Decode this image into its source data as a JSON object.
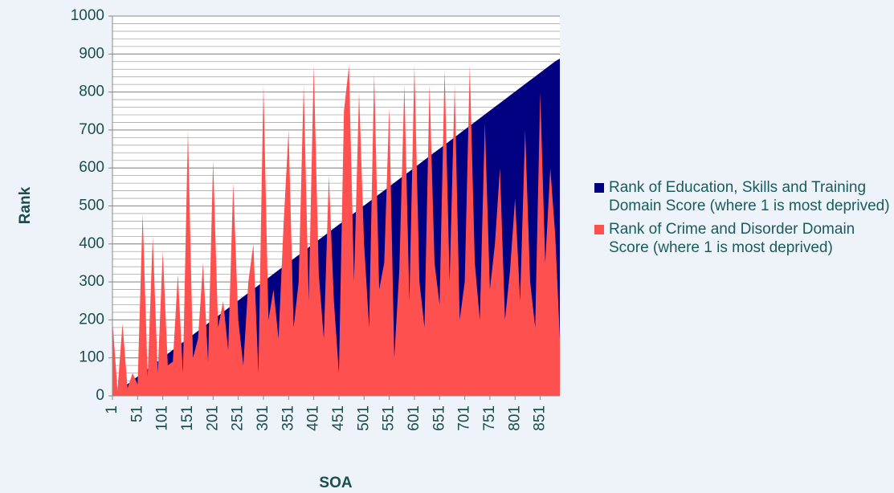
{
  "chart_data": {
    "type": "area",
    "x_label": "SOA",
    "y_label": "Rank",
    "xlim": [
      1,
      890
    ],
    "xticks": [
      1,
      51,
      101,
      151,
      201,
      251,
      301,
      351,
      401,
      451,
      501,
      551,
      601,
      651,
      701,
      751,
      801,
      851
    ],
    "ylim": [
      0,
      1000
    ],
    "yticks": [
      0,
      100,
      200,
      300,
      400,
      500,
      600,
      700,
      800,
      900,
      1000
    ],
    "minor_grid": 20,
    "grid": true,
    "legend": "right",
    "x": [
      1,
      11,
      21,
      31,
      41,
      51,
      61,
      71,
      81,
      91,
      101,
      111,
      121,
      131,
      141,
      151,
      161,
      171,
      181,
      191,
      201,
      211,
      221,
      231,
      241,
      251,
      261,
      271,
      281,
      291,
      301,
      311,
      321,
      331,
      341,
      351,
      361,
      371,
      381,
      391,
      401,
      411,
      421,
      431,
      441,
      451,
      461,
      471,
      481,
      491,
      501,
      511,
      521,
      531,
      541,
      551,
      561,
      571,
      581,
      591,
      601,
      611,
      621,
      631,
      641,
      651,
      661,
      671,
      681,
      691,
      701,
      711,
      721,
      731,
      741,
      751,
      761,
      771,
      781,
      791,
      801,
      811,
      821,
      831,
      841,
      851,
      861,
      871,
      881,
      890
    ],
    "series": [
      {
        "name": "Rank of Education, Skills and Training Domain Score (where 1 is most deprived)",
        "color": "#000080",
        "values": [
          1,
          11,
          21,
          31,
          41,
          51,
          61,
          71,
          81,
          91,
          101,
          111,
          121,
          131,
          141,
          151,
          161,
          171,
          181,
          191,
          201,
          211,
          221,
          231,
          241,
          251,
          261,
          271,
          281,
          291,
          301,
          311,
          321,
          331,
          341,
          351,
          361,
          371,
          381,
          391,
          401,
          411,
          421,
          431,
          441,
          451,
          461,
          471,
          481,
          491,
          501,
          511,
          521,
          531,
          541,
          551,
          561,
          571,
          581,
          591,
          601,
          611,
          621,
          631,
          641,
          651,
          661,
          671,
          681,
          691,
          701,
          711,
          721,
          731,
          741,
          751,
          761,
          771,
          781,
          791,
          801,
          811,
          821,
          831,
          841,
          851,
          861,
          871,
          881,
          888
        ]
      },
      {
        "name": "Rank of Crime and Disorder Domain Score (where 1 is most deprived)",
        "color": "#ff5050",
        "values": [
          200,
          15,
          190,
          20,
          60,
          30,
          480,
          50,
          420,
          60,
          380,
          80,
          90,
          320,
          60,
          700,
          100,
          150,
          350,
          90,
          620,
          180,
          250,
          120,
          560,
          200,
          80,
          300,
          400,
          60,
          820,
          200,
          280,
          150,
          450,
          700,
          180,
          300,
          820,
          250,
          870,
          320,
          150,
          580,
          250,
          60,
          750,
          870,
          300,
          800,
          400,
          180,
          850,
          280,
          350,
          760,
          100,
          330,
          820,
          250,
          870,
          300,
          180,
          820,
          350,
          240,
          860,
          300,
          820,
          200,
          300,
          870,
          350,
          200,
          720,
          280,
          400,
          600,
          200,
          330,
          520,
          250,
          700,
          300,
          180,
          800,
          350,
          600,
          420,
          150
        ]
      }
    ]
  }
}
